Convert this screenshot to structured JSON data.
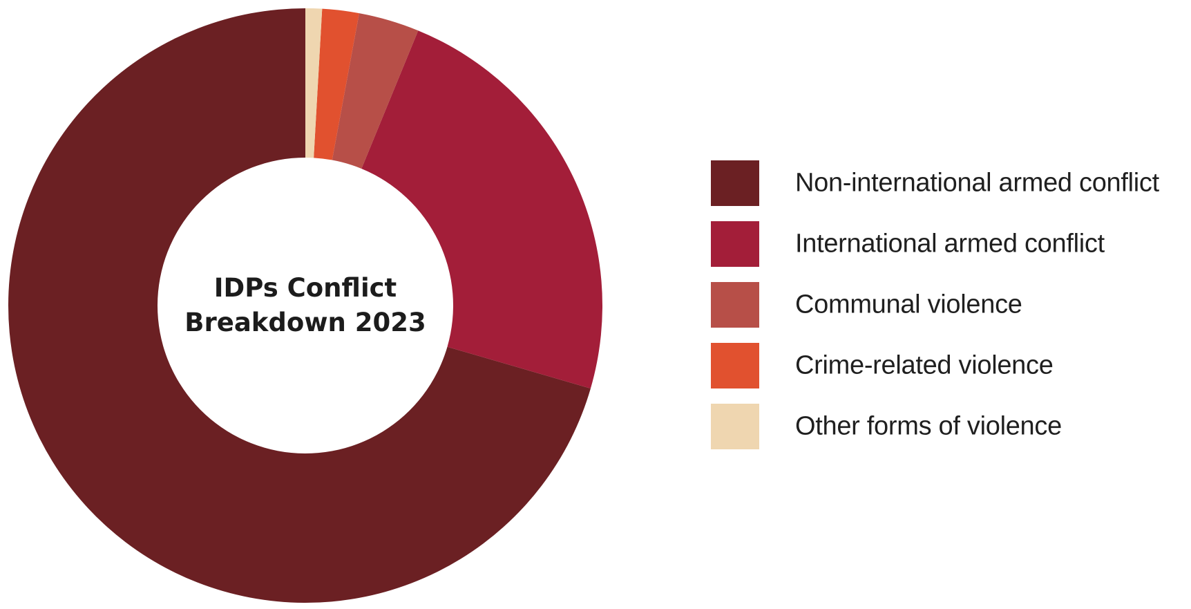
{
  "chart_data": {
    "type": "pie",
    "style": "donut",
    "title": "IDPs Conflict Breakdown 2023",
    "title_lines": [
      "IDPs Conflict",
      "Breakdown 2023"
    ],
    "categories": [
      "Non-international armed conflict",
      "International armed conflict",
      "Communal violence",
      "Crime-related violence",
      "Other forms of violence"
    ],
    "values": [
      70.5,
      23.3,
      3.3,
      2.0,
      0.9
    ],
    "colors": [
      "#6b2023",
      "#a31e39",
      "#b74f48",
      "#e1512f",
      "#efd6b0"
    ],
    "start_angle_deg": 0,
    "direction": "counterclockwise",
    "legend_position": "right"
  }
}
